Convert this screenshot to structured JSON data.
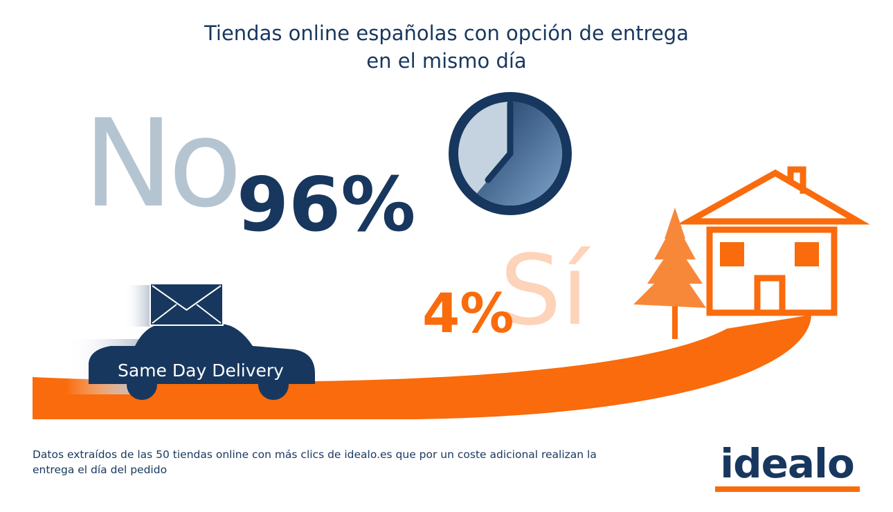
{
  "title": [
    "Tiendas online españolas con opción de entrega",
    "en el mismo día"
  ],
  "no": {
    "label": "No",
    "value": "96%"
  },
  "si": {
    "label": "Sí",
    "value": "4%"
  },
  "car_label": "Same Day Delivery",
  "footnote": [
    "Datos extraídos de las 50 tiendas online con más clics de idealo.es que por un coste adicional realizan la",
    "entrega el día del pedido"
  ],
  "logo": "idealo"
}
